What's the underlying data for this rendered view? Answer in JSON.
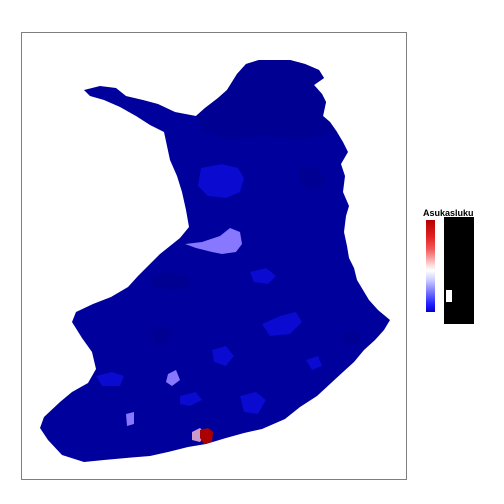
{
  "legend": {
    "title": "Asukasluku",
    "colors": [
      "#b40000",
      "#e22020",
      "#ffffff",
      "#6a6aff",
      "#0000c8"
    ]
  },
  "map": {
    "base_color": "#00009c",
    "region_colors": {
      "dark": "#000093",
      "medium": "#0a0ad0",
      "light": "#2a2ae0",
      "lavender": "#8877ff",
      "capital": "#aa0000",
      "capital_edge": "#cc99cc"
    }
  }
}
